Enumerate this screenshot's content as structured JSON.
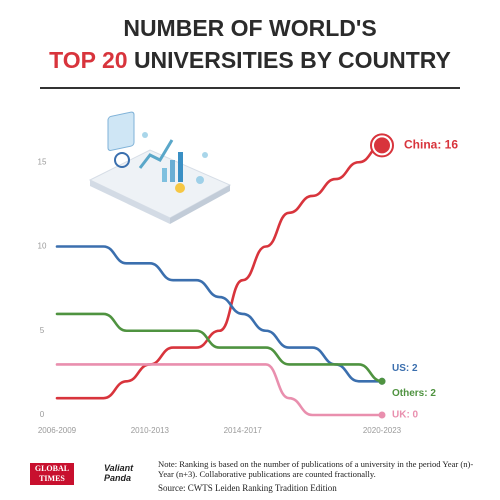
{
  "chart_data": {
    "type": "line",
    "title": {
      "line1": "NUMBER OF WORLD'S",
      "highlight": "TOP 20",
      "line2": "UNIVERSITIES BY COUNTRY"
    },
    "categories": [
      "2006-2009",
      null,
      null,
      null,
      "2010-2013",
      null,
      null,
      null,
      "2014-2017",
      null,
      null,
      null,
      null,
      null,
      "2020-2023"
    ],
    "ylim": [
      0,
      16
    ],
    "yticks": [
      0,
      5,
      10,
      15
    ],
    "grid": false,
    "series": [
      {
        "name": "China",
        "color": "#d8343c",
        "end_label": "China: 16",
        "values": [
          1,
          1,
          1,
          2,
          3,
          4,
          4,
          5,
          8,
          10,
          12,
          13,
          14,
          15,
          16
        ]
      },
      {
        "name": "US",
        "color": "#3b6fae",
        "end_label": "US: 2",
        "values": [
          10,
          10,
          10,
          9,
          9,
          8,
          8,
          7,
          6,
          5,
          4,
          4,
          3,
          2,
          2
        ]
      },
      {
        "name": "Others",
        "color": "#4f9340",
        "end_label": "Others: 2",
        "values": [
          6,
          6,
          6,
          5,
          5,
          5,
          5,
          4,
          4,
          4,
          3,
          3,
          3,
          3,
          2
        ]
      },
      {
        "name": "UK",
        "color": "#e98fae",
        "end_label": "UK: 0",
        "values": [
          3,
          3,
          3,
          3,
          3,
          3,
          3,
          3,
          3,
          3,
          1,
          0,
          0,
          0,
          0
        ]
      }
    ]
  },
  "footer": {
    "logo1": "GLOBAL TIMES",
    "logo2": "Valiant Panda",
    "note": "Note: Ranking is based on the number of publications of a university in the period Year (n)- Year (n+3). Collaborative publications are counted fractionally.",
    "source": "Source: CWTS Leiden Ranking Tradition Edition"
  }
}
